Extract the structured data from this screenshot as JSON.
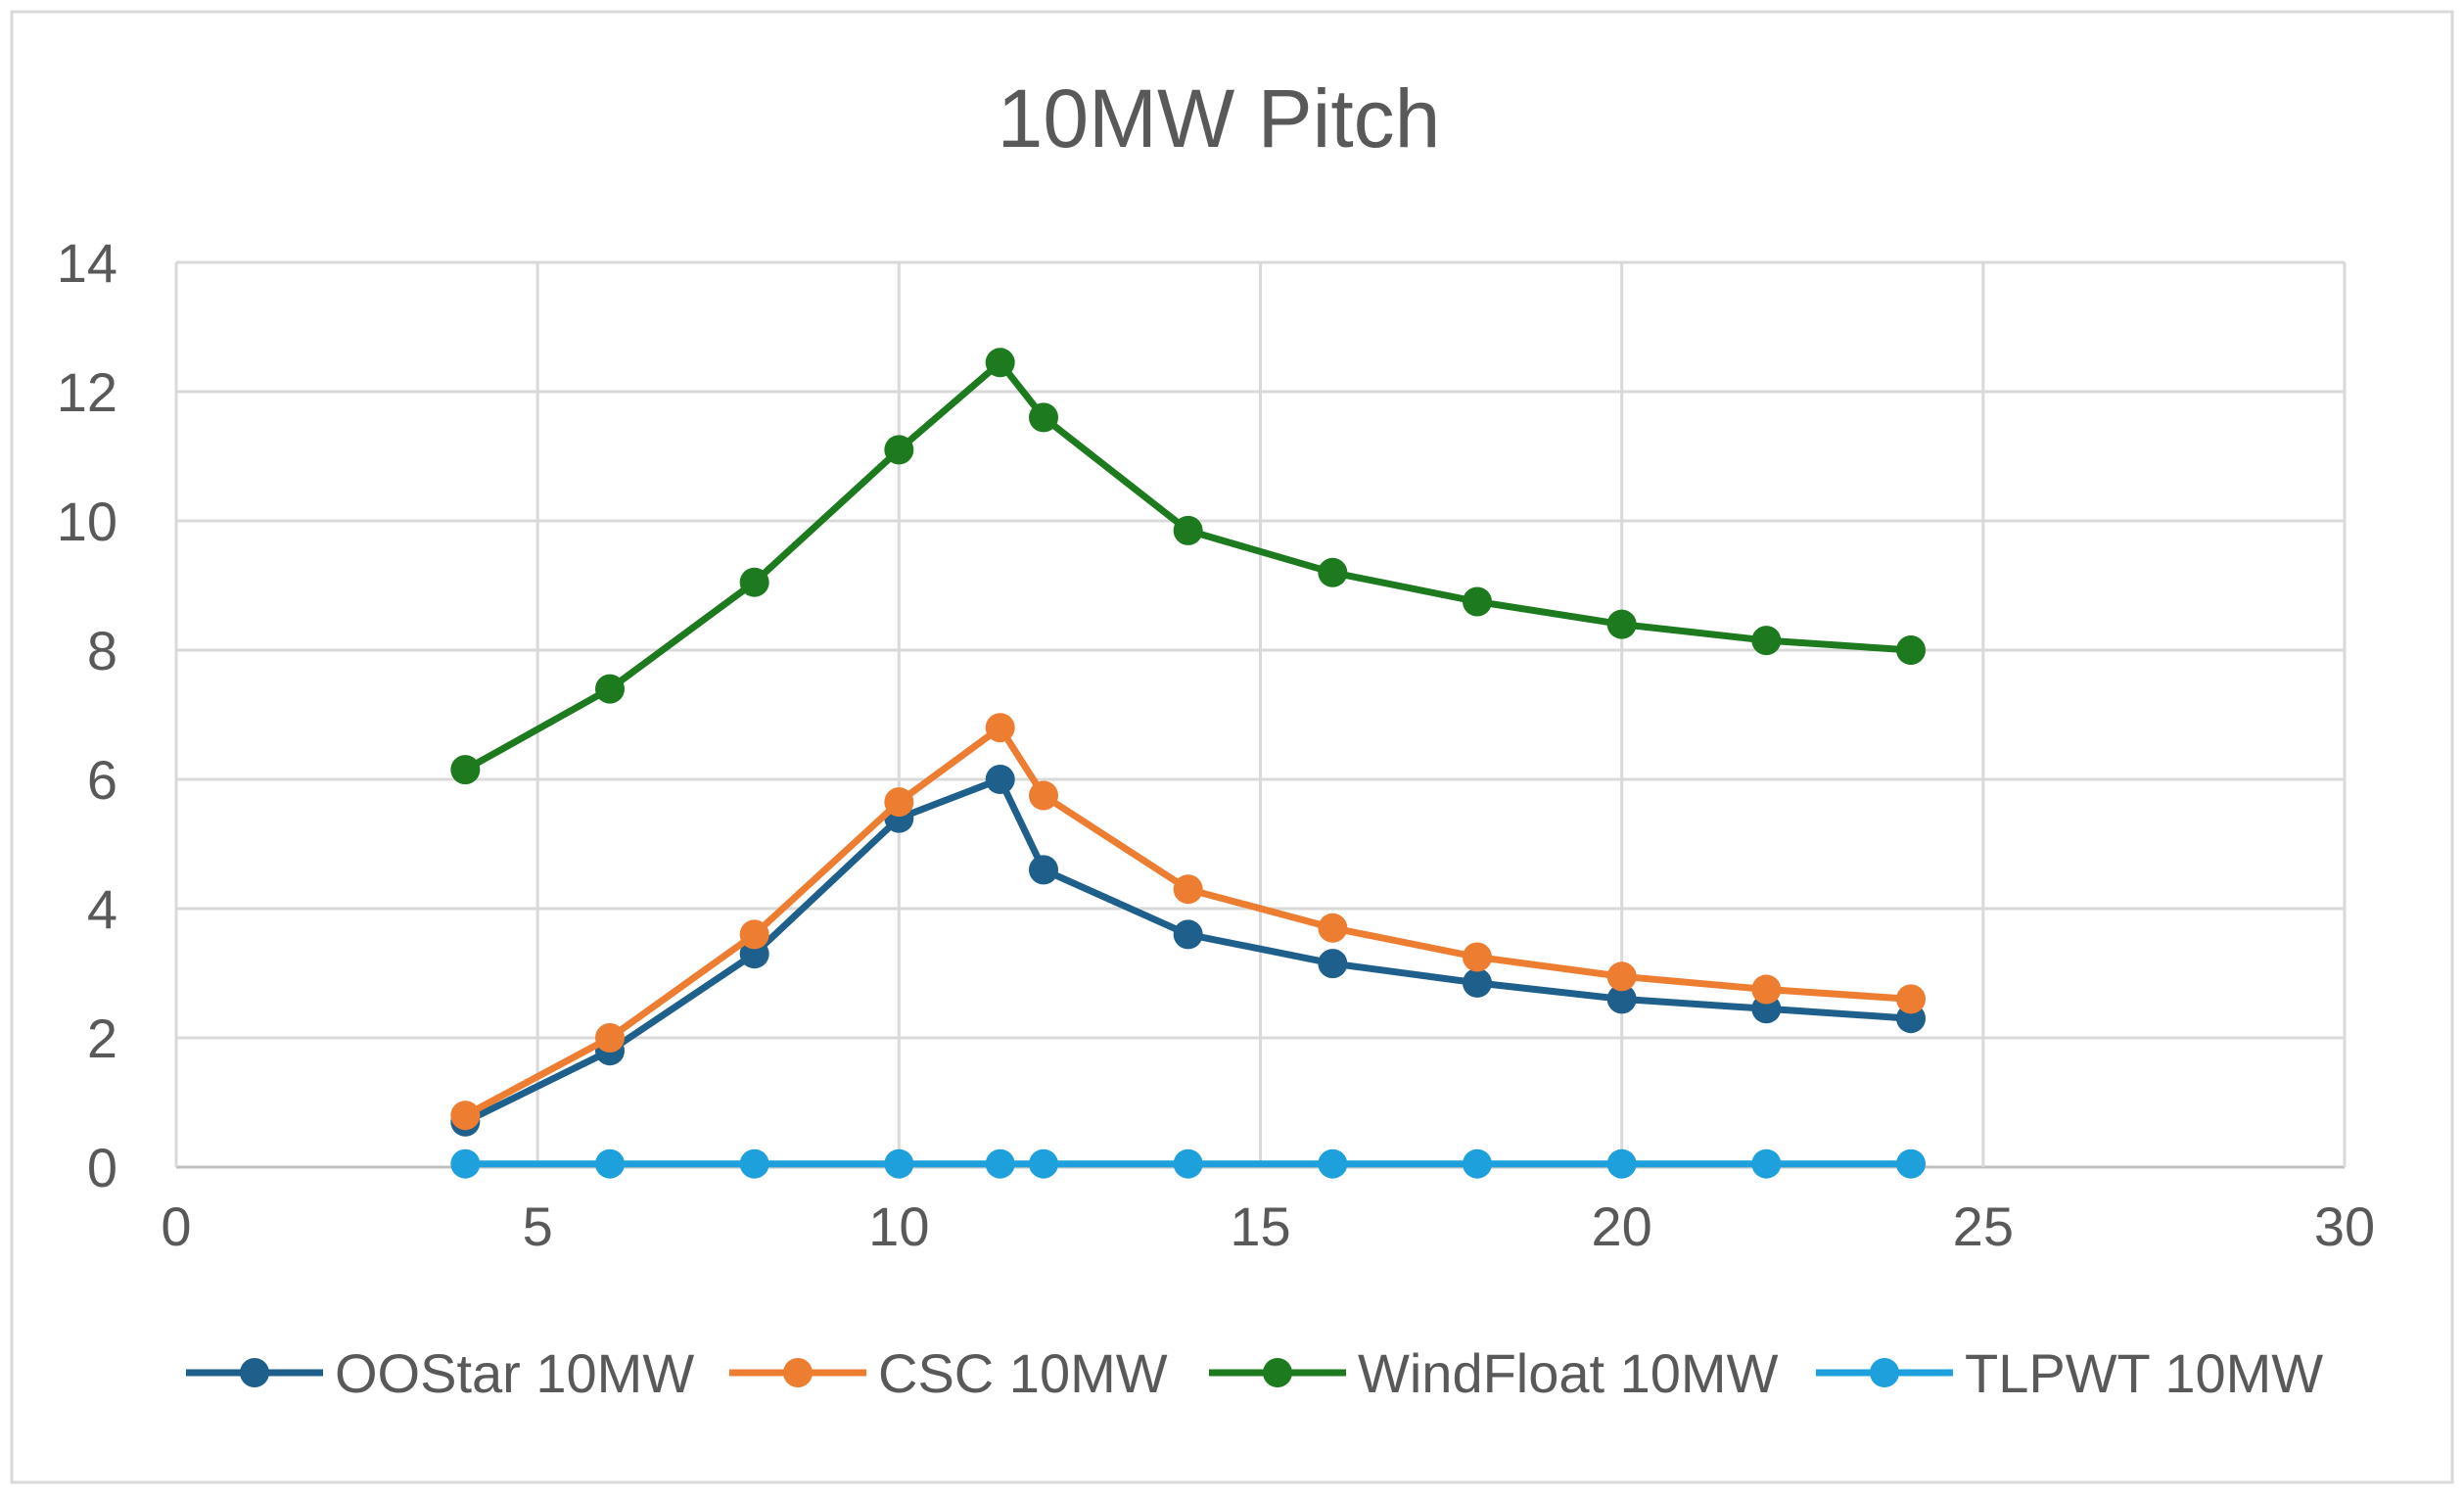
{
  "chart_data": {
    "type": "line",
    "title": "10MW Pitch",
    "xlabel": "",
    "ylabel": "",
    "xlim": [
      0,
      30
    ],
    "ylim": [
      0,
      14
    ],
    "x_ticks": [
      0,
      5,
      10,
      15,
      20,
      25,
      30
    ],
    "y_ticks": [
      0,
      2,
      4,
      6,
      8,
      10,
      12,
      14
    ],
    "x_tick_labels": [
      "0",
      "5",
      "10",
      "15",
      "20",
      "25",
      "30"
    ],
    "y_tick_labels": [
      "0",
      "2",
      "4",
      "6",
      "8",
      "10",
      "12",
      "14"
    ],
    "grid": true,
    "legend_position": "bottom",
    "x": [
      4,
      6,
      8,
      10,
      11.4,
      12,
      14,
      16,
      18,
      20,
      22,
      24
    ],
    "series": [
      {
        "name": "OOStar 10MW",
        "color": "#1f5f8b",
        "values": [
          0.7,
          1.8,
          3.3,
          5.4,
          6.0,
          4.6,
          3.6,
          3.15,
          2.85,
          2.6,
          2.45,
          2.3
        ]
      },
      {
        "name": "CSC 10MW",
        "color": "#ed7d31",
        "values": [
          0.8,
          2.0,
          3.6,
          5.65,
          6.8,
          5.75,
          4.3,
          3.7,
          3.25,
          2.95,
          2.75,
          2.6
        ]
      },
      {
        "name": "WindFloat 10MW",
        "color": "#1e7a1e",
        "values": [
          6.15,
          7.4,
          9.05,
          11.1,
          12.45,
          11.6,
          9.85,
          9.2,
          8.75,
          8.4,
          8.15,
          8.0
        ]
      },
      {
        "name": "TLPWT 10MW",
        "color": "#1ea0dc",
        "values": [
          0.05,
          0.05,
          0.05,
          0.05,
          0.05,
          0.05,
          0.05,
          0.05,
          0.05,
          0.05,
          0.05,
          0.05
        ]
      }
    ]
  }
}
